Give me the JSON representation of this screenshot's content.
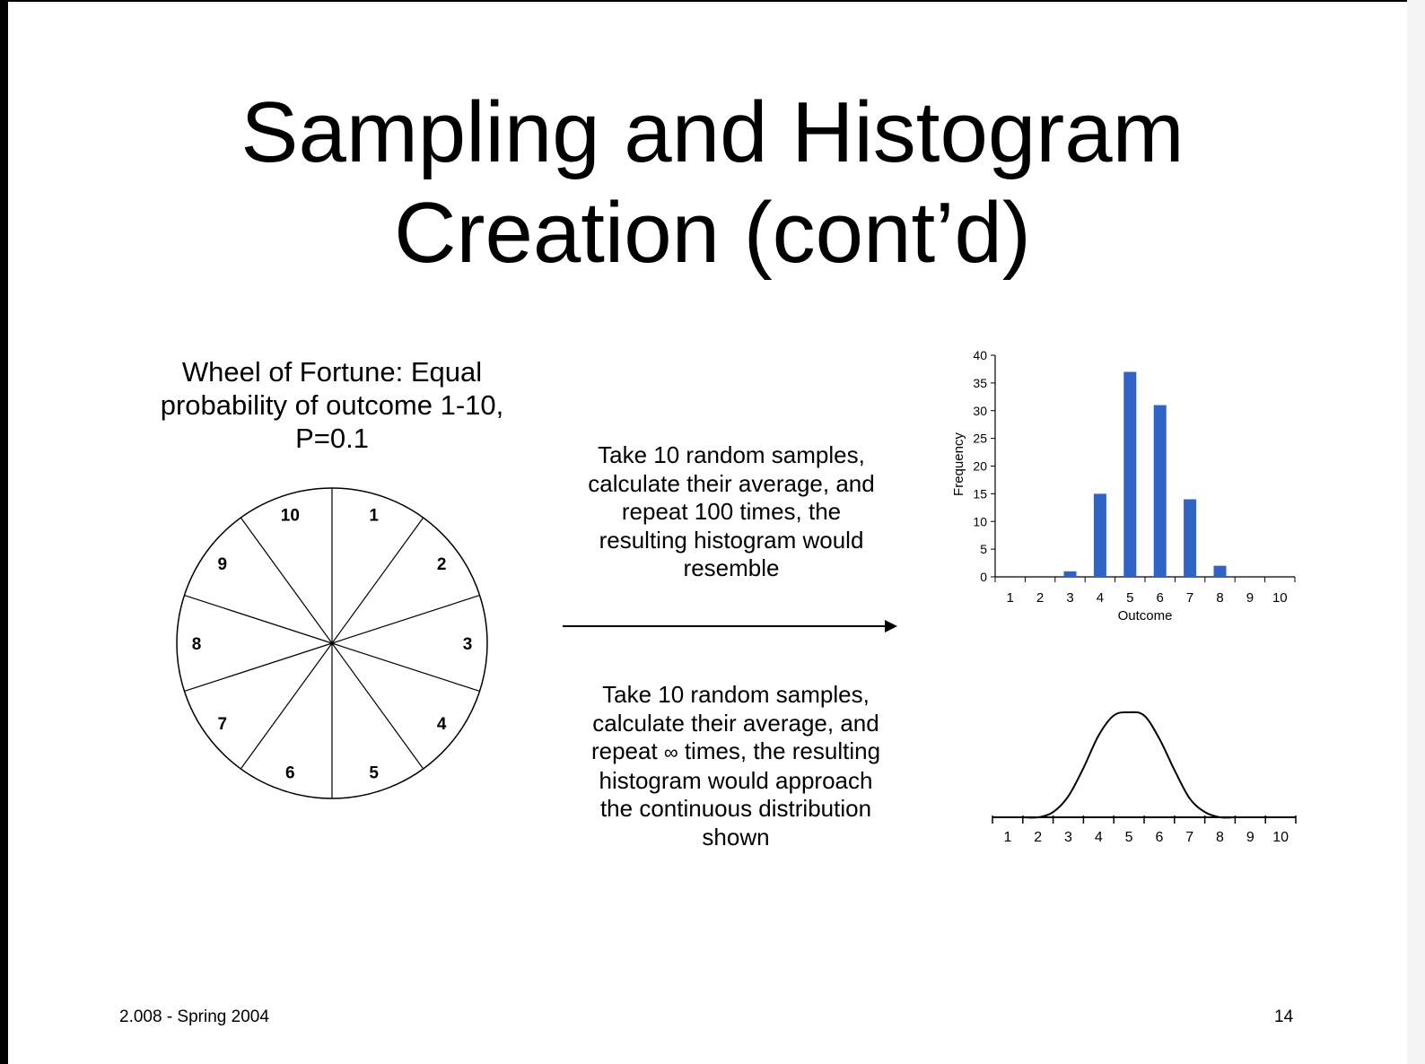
{
  "slide": {
    "title_line1": "Sampling and Histogram",
    "title_line2": "Creation (cont’d)",
    "footer_left": "2.008 - Spring 2004",
    "page_number": "14"
  },
  "wheel": {
    "caption_line1": "Wheel of Fortune: Equal",
    "caption_line2": "probability of outcome 1-10,",
    "caption_line3": "P=0.1",
    "segments": [
      "1",
      "2",
      "3",
      "4",
      "5",
      "6",
      "7",
      "8",
      "9",
      "10"
    ]
  },
  "middle": {
    "top_lines": [
      "Take 10 random samples,",
      "calculate their average, and",
      "repeat 100 times, the",
      "resulting histogram would",
      "resemble"
    ],
    "bottom_line1": "Take 10 random samples,",
    "bottom_line2": "calculate their average, and",
    "bottom_line3_pre": "repeat ",
    "infinity_symbol": "∞",
    "bottom_line3_post": " times, the resulting",
    "bottom_line4": "histogram would approach",
    "bottom_line5": "the continuous distribution",
    "bottom_line6": "shown"
  },
  "chart_data": [
    {
      "type": "bar",
      "categories": [
        "1",
        "2",
        "3",
        "4",
        "5",
        "6",
        "7",
        "8",
        "9",
        "10"
      ],
      "values": [
        0,
        0,
        1,
        15,
        37,
        31,
        14,
        2,
        0,
        0
      ],
      "xlabel": "Outcome",
      "ylabel": "Frequency",
      "ylim": [
        0,
        40
      ],
      "yticks": [
        "0",
        "5",
        "10",
        "15",
        "20",
        "25",
        "30",
        "35",
        "40"
      ],
      "color": "#2f63c5",
      "grid": false
    },
    {
      "type": "line",
      "categories": [
        "1",
        "2",
        "3",
        "4",
        "5",
        "6",
        "7",
        "8",
        "9",
        "10"
      ],
      "x": [
        1.5,
        2,
        2.5,
        3,
        3.5,
        4,
        4.5,
        5,
        5.5,
        6,
        6.5,
        7,
        7.5,
        8,
        8.5
      ],
      "values": [
        0,
        0,
        0.05,
        0.2,
        0.47,
        0.78,
        0.97,
        1,
        0.97,
        0.75,
        0.45,
        0.18,
        0.05,
        0,
        0
      ],
      "ylim": [
        0,
        1.05
      ],
      "color": "#000000",
      "grid": false
    }
  ]
}
